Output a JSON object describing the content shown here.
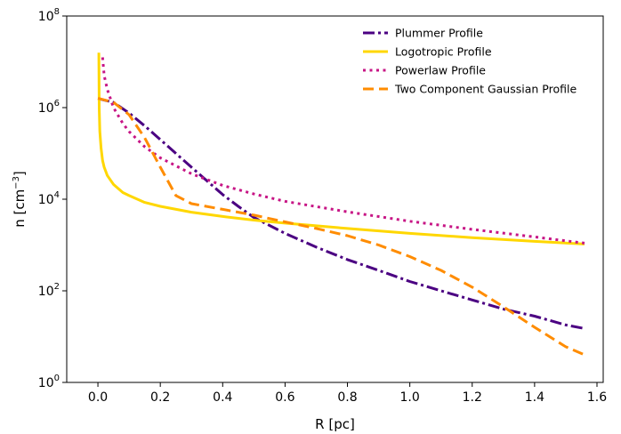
{
  "chart_data": {
    "type": "line",
    "title": "",
    "xlabel": "R [pc]",
    "ylabel": "n [cm⁻³]",
    "xlim": [
      -0.1,
      1.62
    ],
    "ylim": [
      1,
      100000000
    ],
    "yscale": "log",
    "grid": false,
    "legend_position": "top-right",
    "x_ticks": [
      0.0,
      0.2,
      0.4,
      0.6,
      0.8,
      1.0,
      1.2,
      1.4,
      1.6
    ],
    "x_tick_labels": [
      "0.0",
      "0.2",
      "0.4",
      "0.6",
      "0.8",
      "1.0",
      "1.2",
      "1.4",
      "1.6"
    ],
    "y_ticks": [
      1,
      100,
      10000,
      1000000,
      100000000
    ],
    "y_tick_labels": [
      {
        "base": "10",
        "exp": "0"
      },
      {
        "base": "10",
        "exp": "2"
      },
      {
        "base": "10",
        "exp": "4"
      },
      {
        "base": "10",
        "exp": "6"
      },
      {
        "base": "10",
        "exp": "8"
      }
    ],
    "series": [
      {
        "name": "Plummer Profile",
        "color": "#4b0082",
        "style": "dashdot",
        "x": [
          0.0,
          0.05,
          0.1,
          0.15,
          0.2,
          0.25,
          0.3,
          0.35,
          0.4,
          0.45,
          0.5,
          0.6,
          0.7,
          0.8,
          0.9,
          1.0,
          1.1,
          1.2,
          1.3,
          1.4,
          1.5,
          1.56
        ],
        "y": [
          1580000,
          1300000,
          760000,
          400000,
          200000,
          100000,
          50000,
          25000,
          12600,
          7000,
          4000,
          1800,
          900,
          480,
          280,
          160,
          100,
          63,
          40,
          28,
          18,
          15
        ]
      },
      {
        "name": "Logotropic Profile",
        "color": "#ffd700",
        "style": "solid",
        "x": [
          0.003,
          0.004,
          0.006,
          0.01,
          0.015,
          0.02,
          0.03,
          0.05,
          0.08,
          0.1,
          0.15,
          0.2,
          0.3,
          0.4,
          0.5,
          0.6,
          0.8,
          1.0,
          1.2,
          1.4,
          1.56
        ],
        "y": [
          15800000,
          1000000,
          300000,
          130000,
          70000,
          50000,
          33000,
          21000,
          14000,
          12000,
          8500,
          7000,
          5200,
          4200,
          3500,
          3000,
          2300,
          1800,
          1450,
          1200,
          1050
        ]
      },
      {
        "name": "Powerlaw Profile",
        "color": "#c71585",
        "style": "dotted",
        "x": [
          0.015,
          0.02,
          0.03,
          0.05,
          0.08,
          0.1,
          0.15,
          0.2,
          0.3,
          0.4,
          0.5,
          0.6,
          0.8,
          1.0,
          1.2,
          1.4,
          1.56
        ],
        "y": [
          12500000,
          5000000,
          2500000,
          1000000,
          450000,
          300000,
          140000,
          80000,
          36000,
          20000,
          13000,
          9000,
          5300,
          3300,
          2200,
          1500,
          1100
        ]
      },
      {
        "name": "Two Component Gaussian Profile",
        "color": "#ff8c00",
        "style": "dashed",
        "x": [
          0.0,
          0.05,
          0.1,
          0.15,
          0.2,
          0.25,
          0.3,
          0.4,
          0.5,
          0.6,
          0.7,
          0.8,
          0.9,
          1.0,
          1.1,
          1.2,
          1.3,
          1.4,
          1.5,
          1.56
        ],
        "y": [
          1600000,
          1300000,
          700000,
          220000,
          50000,
          12000,
          8000,
          6000,
          4500,
          3200,
          2300,
          1600,
          1000,
          560,
          280,
          120,
          45,
          16,
          6,
          4
        ]
      }
    ]
  }
}
